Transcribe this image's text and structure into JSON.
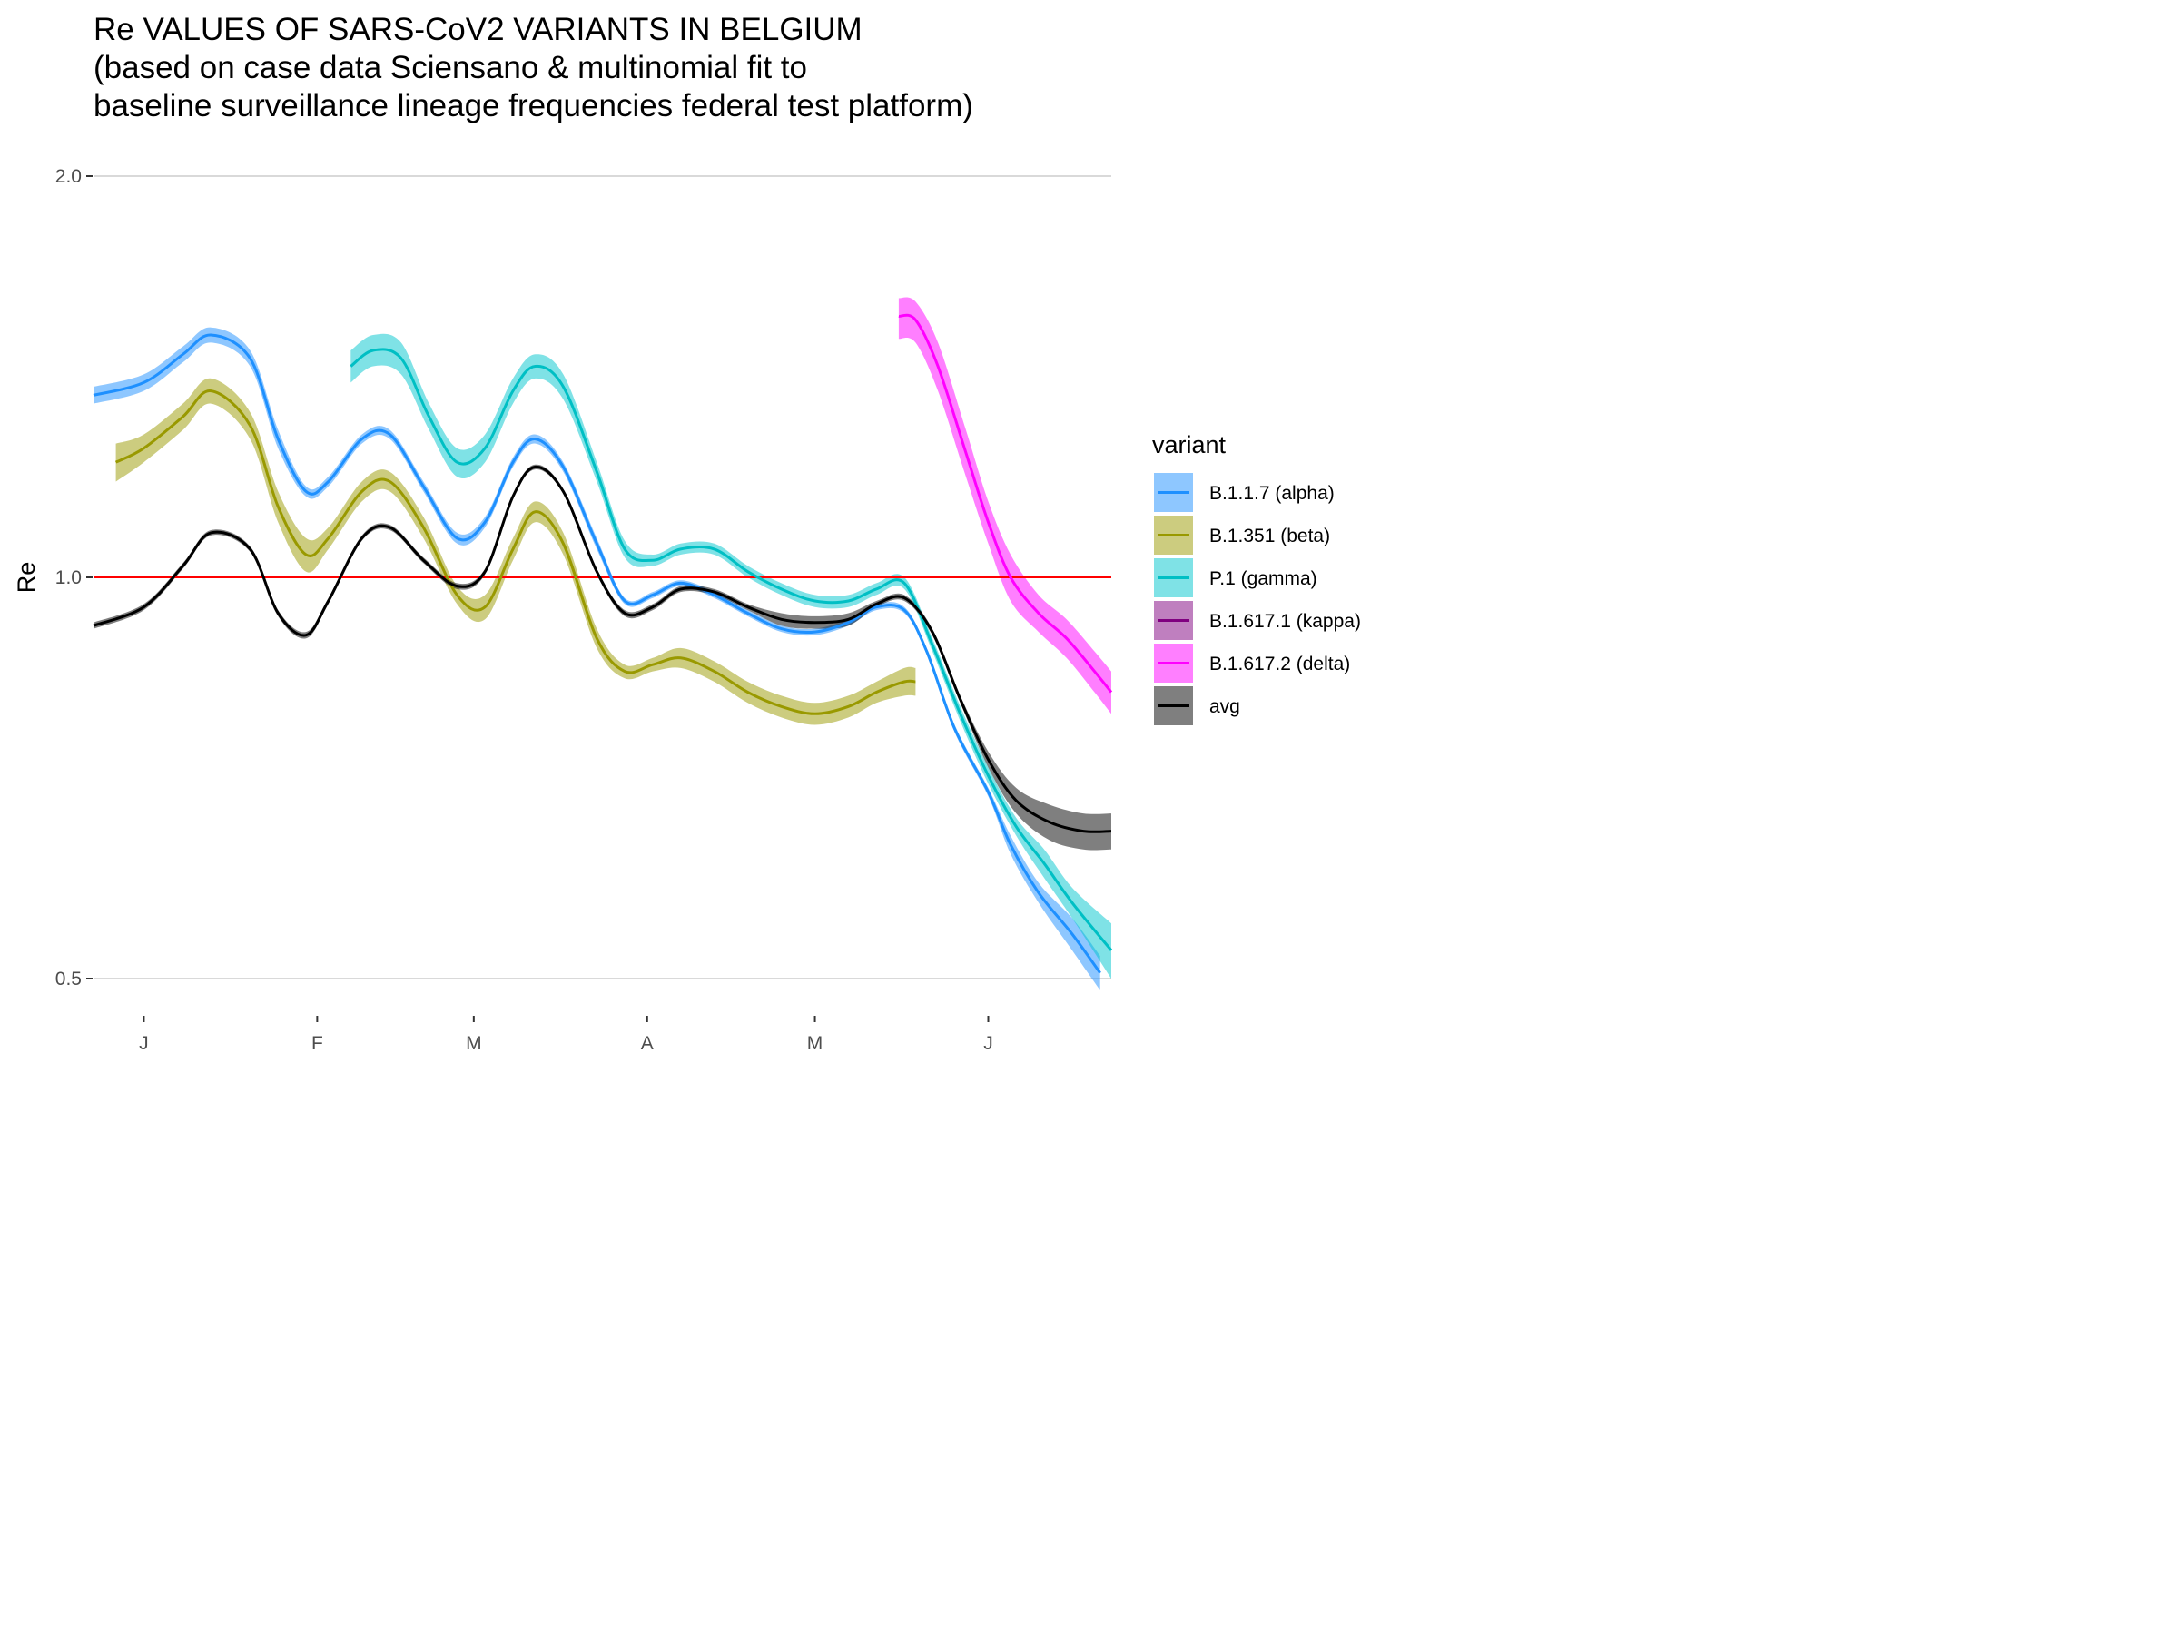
{
  "chart_data": {
    "type": "line",
    "title": [
      "Re VALUES OF SARS-CoV2 VARIANTS IN BELGIUM",
      "(based on case data Sciensano & multinomial fit to",
      "baseline surveillance lineage frequencies federal test platform)"
    ],
    "xlabel": "",
    "ylabel": "Re",
    "y_scale": "log",
    "ylim": [
      0.5,
      2.0
    ],
    "y_ticks": [
      0.5,
      1.0,
      2.0
    ],
    "y_tick_labels": [
      "0.5",
      "1.0",
      "2.0"
    ],
    "xlim": [
      "2020-12-23",
      "2021-06-23"
    ],
    "x_ticks": [
      "2021-01-01",
      "2021-02-01",
      "2021-03-01",
      "2021-04-01",
      "2021-05-01",
      "2021-06-01"
    ],
    "x_tick_labels": [
      "J",
      "F",
      "M",
      "A",
      "M",
      "J"
    ],
    "reference_line": {
      "y": 1.0,
      "color": "#ff0000"
    },
    "grid": "horizontal major",
    "legend": {
      "title": "variant",
      "position": "right"
    },
    "series": [
      {
        "name": "B.1.1.7 (alpha)",
        "color": "#1e90ff",
        "ribbon_color": "#1e90ff",
        "x": [
          "2020-12-23",
          "2021-01-01",
          "2021-01-08",
          "2021-01-13",
          "2021-01-20",
          "2021-01-25",
          "2021-01-30",
          "2021-02-03",
          "2021-02-09",
          "2021-02-14",
          "2021-02-20",
          "2021-02-26",
          "2021-03-03",
          "2021-03-08",
          "2021-03-12",
          "2021-03-17",
          "2021-03-23",
          "2021-03-28",
          "2021-04-02",
          "2021-04-07",
          "2021-04-13",
          "2021-04-19",
          "2021-04-25",
          "2021-05-01",
          "2021-05-07",
          "2021-05-12",
          "2021-05-17",
          "2021-05-21",
          "2021-05-26",
          "2021-06-01",
          "2021-06-05",
          "2021-06-10",
          "2021-06-16",
          "2021-06-21"
        ],
        "y": [
          1.37,
          1.4,
          1.47,
          1.52,
          1.46,
          1.27,
          1.16,
          1.18,
          1.27,
          1.28,
          1.17,
          1.07,
          1.1,
          1.22,
          1.27,
          1.21,
          1.06,
          0.96,
          0.97,
          0.99,
          0.97,
          0.94,
          0.915,
          0.91,
          0.925,
          0.95,
          0.945,
          0.88,
          0.77,
          0.69,
          0.63,
          0.58,
          0.54,
          0.505
        ],
        "lower": [
          1.35,
          1.38,
          1.45,
          1.5,
          1.44,
          1.25,
          1.15,
          1.17,
          1.26,
          1.27,
          1.16,
          1.06,
          1.09,
          1.21,
          1.26,
          1.2,
          1.05,
          0.955,
          0.965,
          0.985,
          0.965,
          0.935,
          0.91,
          0.905,
          0.92,
          0.945,
          0.94,
          0.875,
          0.765,
          0.685,
          0.62,
          0.57,
          0.525,
          0.49
        ],
        "upper": [
          1.39,
          1.42,
          1.49,
          1.54,
          1.48,
          1.29,
          1.17,
          1.19,
          1.28,
          1.29,
          1.18,
          1.08,
          1.11,
          1.23,
          1.28,
          1.22,
          1.07,
          0.965,
          0.975,
          0.995,
          0.975,
          0.945,
          0.92,
          0.915,
          0.93,
          0.955,
          0.95,
          0.885,
          0.775,
          0.695,
          0.64,
          0.59,
          0.555,
          0.52
        ]
      },
      {
        "name": "B.1.351 (beta)",
        "color": "#999900",
        "ribbon_color": "#999900",
        "x": [
          "2020-12-27",
          "2021-01-01",
          "2021-01-08",
          "2021-01-13",
          "2021-01-20",
          "2021-01-25",
          "2021-01-30",
          "2021-02-03",
          "2021-02-09",
          "2021-02-14",
          "2021-02-20",
          "2021-02-26",
          "2021-03-03",
          "2021-03-08",
          "2021-03-12",
          "2021-03-17",
          "2021-03-23",
          "2021-03-28",
          "2021-04-02",
          "2021-04-07",
          "2021-04-13",
          "2021-04-19",
          "2021-04-25",
          "2021-05-01",
          "2021-05-07",
          "2021-05-12",
          "2021-05-17",
          "2021-05-19"
        ],
        "y": [
          1.22,
          1.25,
          1.32,
          1.38,
          1.3,
          1.13,
          1.04,
          1.07,
          1.16,
          1.18,
          1.09,
          0.97,
          0.95,
          1.05,
          1.12,
          1.06,
          0.9,
          0.85,
          0.86,
          0.87,
          0.85,
          0.82,
          0.8,
          0.79,
          0.8,
          0.82,
          0.835,
          0.835
        ],
        "lower": [
          1.18,
          1.22,
          1.29,
          1.35,
          1.27,
          1.1,
          1.01,
          1.05,
          1.14,
          1.16,
          1.07,
          0.955,
          0.93,
          1.03,
          1.1,
          1.04,
          0.885,
          0.84,
          0.85,
          0.855,
          0.835,
          0.805,
          0.785,
          0.775,
          0.785,
          0.805,
          0.815,
          0.815
        ],
        "upper": [
          1.26,
          1.28,
          1.35,
          1.41,
          1.33,
          1.16,
          1.07,
          1.09,
          1.18,
          1.2,
          1.11,
          0.985,
          0.97,
          1.07,
          1.14,
          1.08,
          0.915,
          0.86,
          0.87,
          0.885,
          0.865,
          0.835,
          0.815,
          0.805,
          0.815,
          0.835,
          0.855,
          0.855
        ]
      },
      {
        "name": "P.1 (gamma)",
        "color": "#00bfc4",
        "ribbon_color": "#00c5cd",
        "x": [
          "2021-02-07",
          "2021-02-11",
          "2021-02-16",
          "2021-02-21",
          "2021-02-26",
          "2021-03-03",
          "2021-03-08",
          "2021-03-12",
          "2021-03-17",
          "2021-03-23",
          "2021-03-28",
          "2021-04-02",
          "2021-04-07",
          "2021-04-13",
          "2021-04-19",
          "2021-04-25",
          "2021-05-01",
          "2021-05-07",
          "2021-05-12",
          "2021-05-17",
          "2021-05-22",
          "2021-05-27",
          "2021-06-01",
          "2021-06-06",
          "2021-06-11",
          "2021-06-16",
          "2021-06-23"
        ],
        "y": [
          1.44,
          1.48,
          1.46,
          1.32,
          1.22,
          1.25,
          1.38,
          1.44,
          1.39,
          1.2,
          1.05,
          1.03,
          1.05,
          1.05,
          1.01,
          0.98,
          0.96,
          0.96,
          0.98,
          0.99,
          0.89,
          0.79,
          0.71,
          0.65,
          0.61,
          0.57,
          0.525
        ],
        "lower": [
          1.4,
          1.44,
          1.42,
          1.29,
          1.19,
          1.22,
          1.35,
          1.41,
          1.36,
          1.18,
          1.035,
          1.02,
          1.04,
          1.04,
          1.0,
          0.97,
          0.95,
          0.95,
          0.97,
          0.98,
          0.88,
          0.78,
          0.7,
          0.64,
          0.595,
          0.555,
          0.5
        ],
        "upper": [
          1.48,
          1.52,
          1.5,
          1.35,
          1.25,
          1.28,
          1.41,
          1.47,
          1.42,
          1.22,
          1.065,
          1.04,
          1.06,
          1.06,
          1.02,
          0.99,
          0.97,
          0.97,
          0.99,
          1.0,
          0.9,
          0.8,
          0.72,
          0.66,
          0.625,
          0.585,
          0.55
        ]
      },
      {
        "name": "B.1.617.1 (kappa)",
        "color": "#800080",
        "ribbon_color": "#800080",
        "x": [],
        "y": [],
        "lower": [],
        "upper": []
      },
      {
        "name": "B.1.617.2 (delta)",
        "color": "#ff00ff",
        "ribbon_color": "#ff00ff",
        "x": [
          "2021-05-16",
          "2021-05-19",
          "2021-05-23",
          "2021-05-28",
          "2021-06-01",
          "2021-06-05",
          "2021-06-10",
          "2021-06-15",
          "2021-06-20",
          "2021-06-23"
        ],
        "y": [
          1.57,
          1.56,
          1.44,
          1.24,
          1.1,
          1.0,
          0.94,
          0.9,
          0.85,
          0.82
        ],
        "lower": [
          1.51,
          1.5,
          1.38,
          1.19,
          1.06,
          0.96,
          0.91,
          0.87,
          0.82,
          0.79
        ],
        "upper": [
          1.62,
          1.61,
          1.5,
          1.29,
          1.14,
          1.04,
          0.97,
          0.93,
          0.88,
          0.85
        ]
      },
      {
        "name": "avg",
        "color": "#000000",
        "ribbon_color": "#000000",
        "x": [
          "2020-12-23",
          "2021-01-01",
          "2021-01-08",
          "2021-01-13",
          "2021-01-20",
          "2021-01-25",
          "2021-01-30",
          "2021-02-03",
          "2021-02-09",
          "2021-02-14",
          "2021-02-20",
          "2021-02-26",
          "2021-03-03",
          "2021-03-08",
          "2021-03-12",
          "2021-03-17",
          "2021-03-23",
          "2021-03-28",
          "2021-04-02",
          "2021-04-07",
          "2021-04-13",
          "2021-04-19",
          "2021-04-25",
          "2021-05-01",
          "2021-05-07",
          "2021-05-12",
          "2021-05-17",
          "2021-05-22",
          "2021-05-27",
          "2021-06-01",
          "2021-06-06",
          "2021-06-12",
          "2021-06-18",
          "2021-06-23"
        ],
        "y": [
          0.92,
          0.95,
          1.02,
          1.08,
          1.05,
          0.94,
          0.905,
          0.96,
          1.07,
          1.09,
          1.03,
          0.985,
          1.01,
          1.15,
          1.21,
          1.16,
          1.01,
          0.94,
          0.95,
          0.98,
          0.975,
          0.95,
          0.93,
          0.925,
          0.93,
          0.955,
          0.965,
          0.91,
          0.81,
          0.73,
          0.68,
          0.655,
          0.645,
          0.645
        ],
        "lower": [
          0.915,
          0.945,
          1.015,
          1.075,
          1.045,
          0.935,
          0.9,
          0.955,
          1.065,
          1.085,
          1.025,
          0.98,
          1.005,
          1.145,
          1.205,
          1.155,
          1.005,
          0.935,
          0.945,
          0.975,
          0.97,
          0.945,
          0.92,
          0.915,
          0.92,
          0.95,
          0.96,
          0.905,
          0.805,
          0.72,
          0.665,
          0.635,
          0.625,
          0.625
        ],
        "upper": [
          0.925,
          0.955,
          1.025,
          1.085,
          1.055,
          0.945,
          0.91,
          0.965,
          1.075,
          1.095,
          1.035,
          0.99,
          1.015,
          1.155,
          1.215,
          1.165,
          1.015,
          0.945,
          0.955,
          0.985,
          0.98,
          0.955,
          0.94,
          0.935,
          0.94,
          0.96,
          0.97,
          0.915,
          0.815,
          0.74,
          0.695,
          0.675,
          0.665,
          0.665
        ]
      }
    ]
  }
}
